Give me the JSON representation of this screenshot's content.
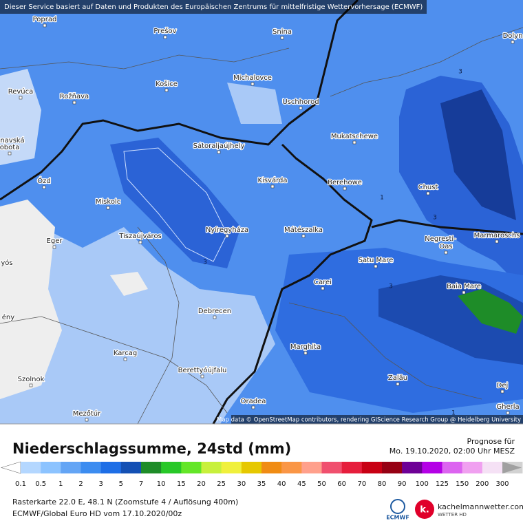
{
  "header": {
    "notice": "Dieser Service basiert auf Daten und Produkten des Europäischen Zentrums für mittelfristige Wettervorhersage (ECMWF)"
  },
  "map": {
    "places": [
      "Poprad",
      "Prešov",
      "Snina",
      "Dolyn",
      "Revúca",
      "Rožňava",
      "Košice",
      "Michalovce",
      "Uschhorod",
      "navská",
      "obota",
      "Mukatschewe",
      "Sátoraljaújhely",
      "Kisvárda",
      "Berehowe",
      "Chust",
      "Ózd",
      "Miskolc",
      "Nyíregyháza",
      "Mátészalka",
      "Tiszaújváros",
      "Eger",
      "Negresti-",
      "Oas",
      "Marmaroschs",
      "yós",
      "Satu Mare",
      "Carei",
      "Baia Mare",
      "Debrecen",
      "ény",
      "Marghita",
      "Karcag",
      "Berettyóújfalu",
      "Szolnok",
      "Zalău",
      "Dej",
      "Oradea",
      "Gherla",
      "Mezőtúr"
    ],
    "contour_labels": [
      "3",
      "1",
      "3",
      "3",
      "3",
      "1"
    ],
    "attribution": "Map data © OpenStreetMap contributors, rendering GIScience Research Group @ Heidelberg University"
  },
  "legend": {
    "title": "Niederschlagssumme, 24std (mm)",
    "forecast_label": "Prognose für",
    "forecast_time": "Mo. 19.10.2020, 02:00 Uhr MESZ",
    "labels": [
      "0.1",
      "0.5",
      "1",
      "2",
      "3",
      "5",
      "7",
      "10",
      "15",
      "20",
      "25",
      "30",
      "35",
      "40",
      "45",
      "50",
      "60",
      "70",
      "80",
      "90",
      "100",
      "125",
      "150",
      "200",
      "300"
    ],
    "colors": [
      "#b4d7ff",
      "#8cc3ff",
      "#64a5f5",
      "#3c8cf0",
      "#1e6ee6",
      "#1450b4",
      "#1e8c28",
      "#28c828",
      "#64e628",
      "#c8f03c",
      "#f0f03c",
      "#e6c800",
      "#f08c14",
      "#fa9646",
      "#ffa08c",
      "#f0506e",
      "#e61e3c",
      "#c80014",
      "#960014",
      "#6e0096",
      "#b400e6",
      "#dc64f0",
      "#f0a0f0",
      "#f5e1f5",
      "#d2d2d2"
    ],
    "below_color": "#ffffff",
    "above_color": "#a0a0a0"
  },
  "footer": {
    "grid_info": "Rasterkarte 22.0 E, 48.1 N (Zoomstufe 4 / Auflösung 400m)",
    "model_info": "ECMWF/Global Euro HD vom 17.10.2020/00z",
    "ecmwf_logo": "ECMWF",
    "site": "kachelmannwetter.com",
    "site_tagline": "WETTER HD",
    "site_icon": "k."
  }
}
